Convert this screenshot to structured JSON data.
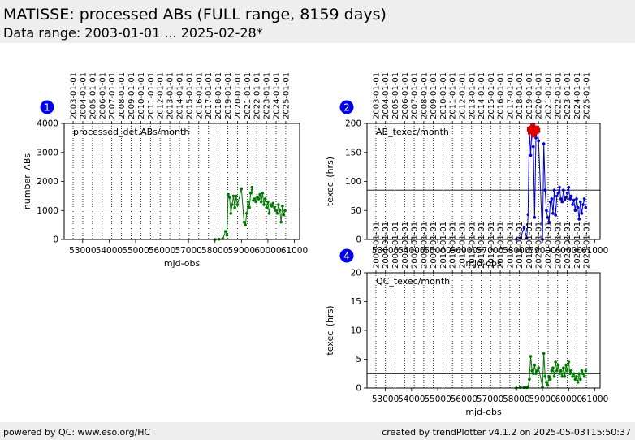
{
  "header": {
    "title": "MATISSE: processed ABs (FULL range, 8159 days)",
    "subtitle": "Data range: 2003-01-01 ... 2025-02-28*"
  },
  "footer": {
    "left": "powered by QC: www.eso.org/HC",
    "right": "created by trendPlotter v4.1.2 on 2025-05-03T15:50:37"
  },
  "chart_data": [
    {
      "id": "1",
      "type": "line",
      "title": "processed_det.ABs/month",
      "xlabel": "mjd-obs",
      "ylabel": "number_ABs",
      "xlim": [
        52300,
        61200
      ],
      "ylim": [
        0,
        4000
      ],
      "yticks": [
        0,
        1000,
        2000,
        3000,
        4000
      ],
      "reference_line": 1050,
      "color": "#007700",
      "x": [
        58000,
        58150,
        58300,
        58400,
        58450,
        58500,
        58550,
        58600,
        58650,
        58700,
        58750,
        58800,
        58850,
        59000,
        59100,
        59150,
        59200,
        59250,
        59300,
        59350,
        59400,
        59450,
        59500,
        59550,
        59600,
        59650,
        59700,
        59750,
        59800,
        59850,
        59900,
        59950,
        60000,
        60050,
        60100,
        60150,
        60200,
        60250,
        60300,
        60350,
        60400,
        60450,
        60500,
        60550,
        60600,
        60650
      ],
      "y": [
        0,
        10,
        30,
        280,
        150,
        1550,
        1450,
        900,
        1200,
        1500,
        1100,
        1500,
        1200,
        1750,
        600,
        500,
        900,
        1300,
        1100,
        1600,
        1800,
        1350,
        1400,
        1300,
        1450,
        1400,
        1550,
        1300,
        1600,
        1200,
        1400,
        1100,
        1300,
        900,
        1200,
        1150,
        1250,
        1100,
        1000,
        900,
        1200,
        1000,
        600,
        1150,
        850,
        1000
      ]
    },
    {
      "id": "2",
      "type": "line",
      "title": "AB_texec/month",
      "xlabel": "mjd-obs",
      "ylabel": "texec_(hrs)",
      "xlim": [
        52300,
        61200
      ],
      "ylim": [
        0,
        200
      ],
      "yticks": [
        0,
        50,
        100,
        150,
        200
      ],
      "reference_line": 85,
      "color": "#0000cc",
      "outlier_color": "#dd0000",
      "x": [
        58000,
        58150,
        58300,
        58400,
        58450,
        58500,
        58550,
        58600,
        58650,
        58700,
        58750,
        58800,
        58850,
        59000,
        59050,
        59100,
        59150,
        59200,
        59250,
        59300,
        59350,
        59400,
        59450,
        59500,
        59550,
        59600,
        59650,
        59700,
        59750,
        59800,
        59850,
        59900,
        59950,
        60000,
        60050,
        60100,
        60150,
        60200,
        60250,
        60300,
        60350,
        60400,
        60450,
        60500,
        60550,
        60600,
        60650
      ],
      "y": [
        0,
        2,
        20,
        2,
        43,
        190,
        145,
        195,
        160,
        38,
        175,
        190,
        170,
        0,
        165,
        85,
        50,
        38,
        30,
        65,
        70,
        45,
        85,
        42,
        75,
        80,
        90,
        70,
        65,
        85,
        68,
        72,
        80,
        90,
        70,
        75,
        60,
        68,
        50,
        70,
        55,
        35,
        65,
        45,
        60,
        70,
        55
      ],
      "outliers": {
        "x": [
          58500,
          58530,
          58560,
          58600,
          58630,
          58660,
          58700,
          58740,
          58780,
          58820
        ],
        "y": [
          190,
          185,
          192,
          188,
          195,
          180,
          190,
          186,
          192,
          188
        ]
      }
    },
    {
      "id": "4",
      "type": "line",
      "title": "QC_texec/month",
      "xlabel": "mjd-obs",
      "ylabel": "texec_(hrs)",
      "xlim": [
        52300,
        61200
      ],
      "ylim": [
        0,
        20
      ],
      "yticks": [
        0,
        5,
        10,
        15,
        20
      ],
      "reference_line": 2.5,
      "color": "#007700",
      "x": [
        58000,
        58150,
        58300,
        58400,
        58450,
        58500,
        58550,
        58600,
        58650,
        58700,
        58750,
        58800,
        58850,
        59000,
        59050,
        59100,
        59150,
        59200,
        59250,
        59300,
        59350,
        59400,
        59450,
        59500,
        59550,
        59600,
        59650,
        59700,
        59750,
        59800,
        59850,
        59900,
        59950,
        60000,
        60050,
        60100,
        60150,
        60200,
        60250,
        60300,
        60350,
        60400,
        60450,
        60500,
        60550,
        60600,
        60650
      ],
      "y": [
        0,
        0.1,
        0.1,
        0.1,
        0.2,
        1.5,
        5.5,
        3,
        2.5,
        4,
        2.5,
        3,
        3.5,
        0.2,
        6,
        2,
        1,
        0.5,
        2,
        1.5,
        3,
        3.5,
        2,
        4.5,
        3,
        4,
        2.5,
        3,
        2,
        3.5,
        2,
        4,
        3,
        4.5,
        2.5,
        3,
        2,
        2.5,
        1.5,
        2,
        1,
        2.5,
        1.5,
        3,
        2.5,
        2,
        3
      ]
    }
  ],
  "x_axis": {
    "ticks": [
      53000,
      54000,
      55000,
      56000,
      57000,
      58000,
      59000,
      60000,
      61000
    ],
    "tick_labels": [
      "53000",
      "54000",
      "55000",
      "56000",
      "57000",
      "58000",
      "59000",
      "60000",
      "61000"
    ],
    "date_ticks_mjd": [
      52640,
      53005,
      53371,
      53736,
      54101,
      54466,
      54832,
      55197,
      55562,
      55927,
      56293,
      56658,
      57023,
      57388,
      57754,
      58119,
      58484,
      58849,
      59215,
      59580,
      59945,
      60310,
      60676
    ],
    "date_labels": [
      "2003-01-01",
      "2004-01-01",
      "2005-01-01",
      "2006-01-01",
      "2007-01-01",
      "2008-01-01",
      "2009-01-01",
      "2010-01-01",
      "2011-01-01",
      "2012-01-01",
      "2013-01-01",
      "2014-01-01",
      "2015-01-01",
      "2016-01-01",
      "2017-01-01",
      "2018-01-01",
      "2019-01-01",
      "2020-01-01",
      "2021-01-01",
      "2022-01-01",
      "2023-01-01",
      "2024-01-01",
      "2025-01-01"
    ]
  }
}
